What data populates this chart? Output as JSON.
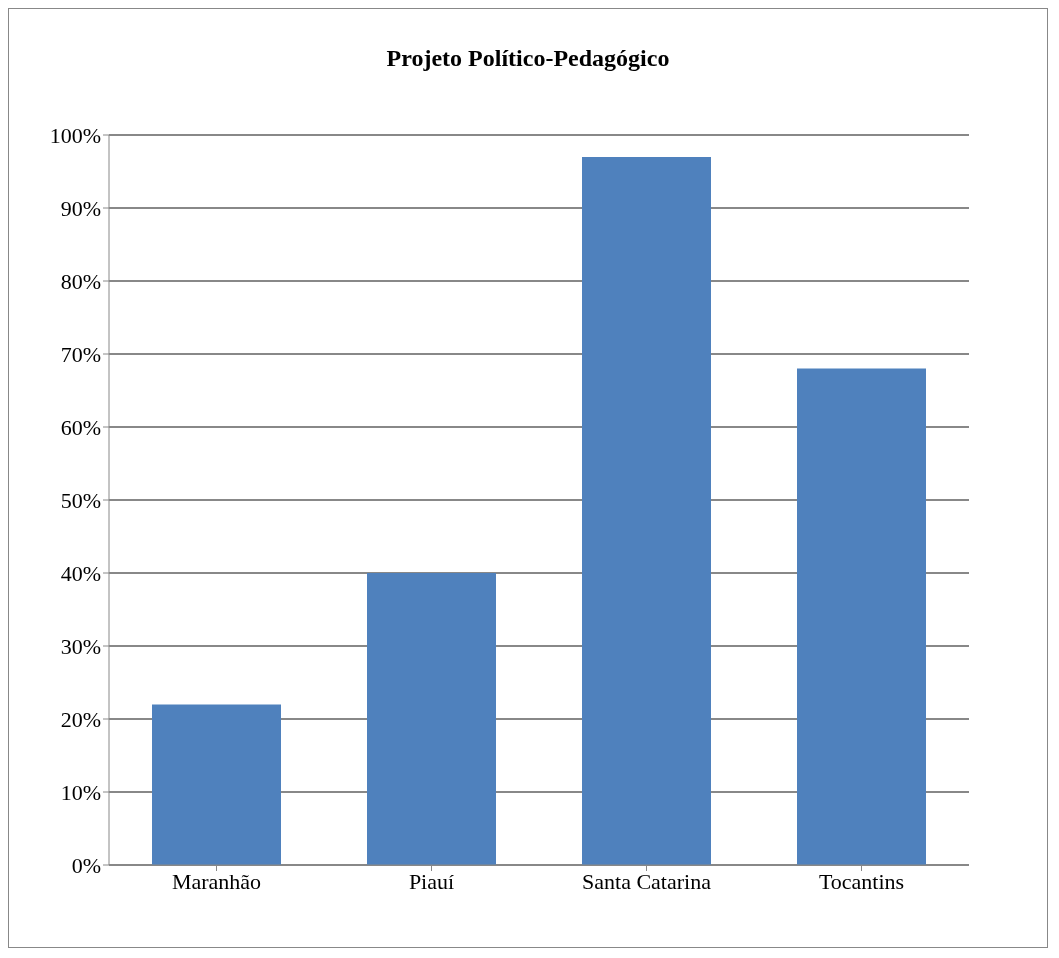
{
  "chart_data": {
    "type": "bar",
    "title": "Projeto Político-Pedagógico",
    "categories": [
      "Maranhão",
      "Piauí",
      "Santa Catarina",
      "Tocantins"
    ],
    "values": [
      22,
      40,
      97,
      68
    ],
    "color": "#4f81bd",
    "ylim": [
      0,
      100
    ],
    "yticks": [
      {
        "value": 0,
        "label": "0%"
      },
      {
        "value": 10,
        "label": "10%"
      },
      {
        "value": 20,
        "label": "20%"
      },
      {
        "value": 30,
        "label": "30%"
      },
      {
        "value": 40,
        "label": "40%"
      },
      {
        "value": 50,
        "label": "50%"
      },
      {
        "value": 60,
        "label": "60%"
      },
      {
        "value": 70,
        "label": "70%"
      },
      {
        "value": 80,
        "label": "80%"
      },
      {
        "value": 90,
        "label": "90%"
      },
      {
        "value": 100,
        "label": "100%"
      }
    ],
    "grid": "y"
  }
}
